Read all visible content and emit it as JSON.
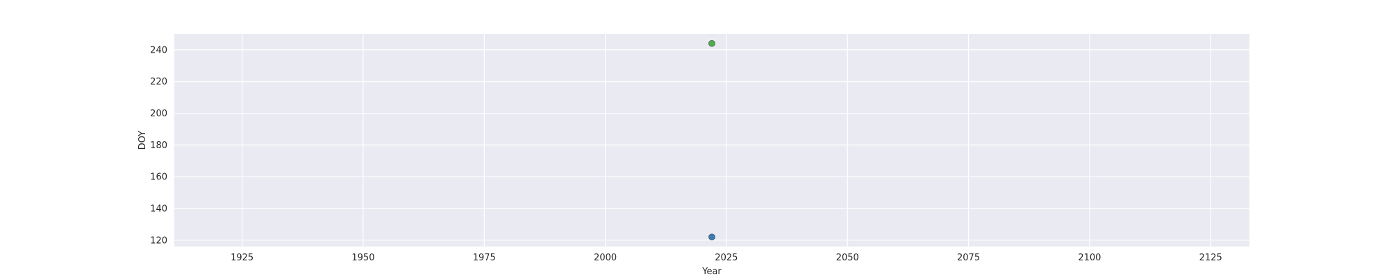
{
  "chart_data": {
    "type": "scatter",
    "title": "",
    "xlabel": "Year",
    "ylabel": "DOY",
    "xlim": [
      1911,
      2133
    ],
    "ylim": [
      116,
      250
    ],
    "xticks": [
      1925,
      1950,
      1975,
      2000,
      2025,
      2050,
      2075,
      2100,
      2125
    ],
    "yticks": [
      120,
      140,
      160,
      180,
      200,
      220,
      240
    ],
    "grid": true,
    "legend": "none",
    "background": "#eaeaf2",
    "gridColor": "#ffffff",
    "series": [
      {
        "color": "#377eb8",
        "points": [
          {
            "x": 2022,
            "y": 122
          }
        ]
      },
      {
        "color": "#4daf4a",
        "points": [
          {
            "x": 2022,
            "y": 244
          }
        ]
      }
    ]
  }
}
